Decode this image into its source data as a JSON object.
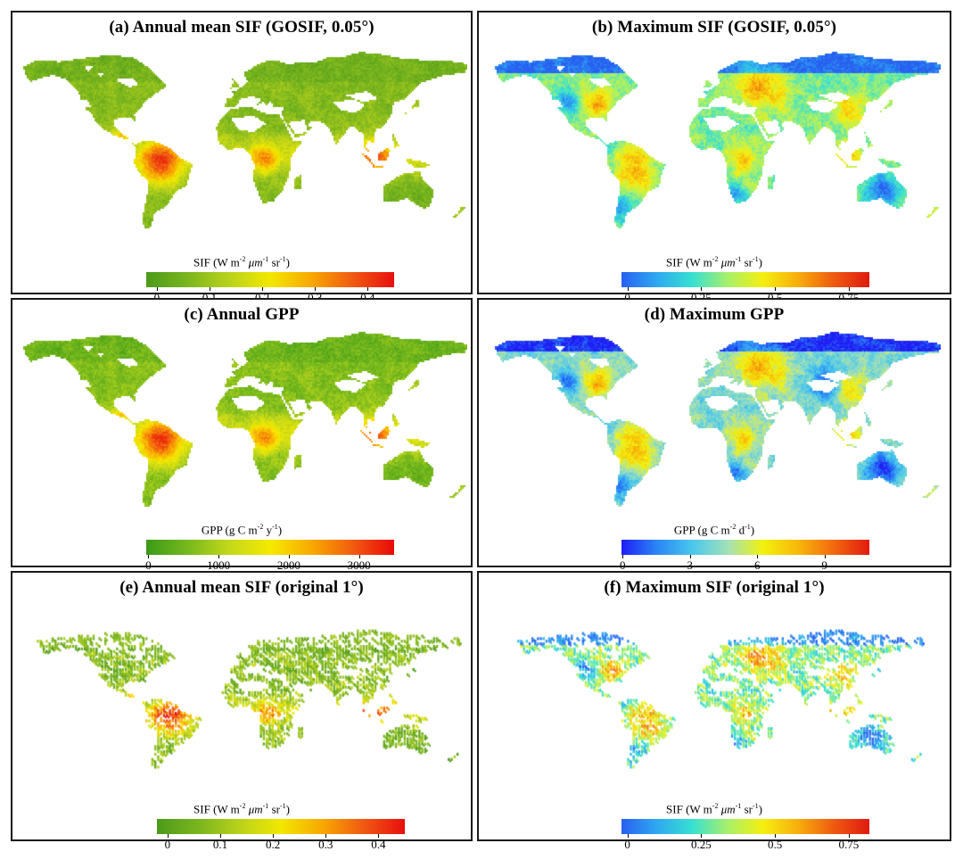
{
  "panels": [
    {
      "id": "a",
      "title": "(a) Annual mean SIF (GOSIF, 0.05°)",
      "scheme": "green",
      "quantity": "SIF",
      "unit": "sif",
      "render": "fine",
      "levels": "a",
      "ticks": [
        {
          "v": 0,
          "label": "0"
        },
        {
          "v": 0.1,
          "label": "0.1"
        },
        {
          "v": 0.2,
          "label": "0.2"
        },
        {
          "v": 0.3,
          "label": "0.3"
        },
        {
          "v": 0.4,
          "label": "0.4"
        }
      ],
      "range": [
        -0.02,
        0.45
      ],
      "colors": [
        "#4c9a1a",
        "#7ab51e",
        "#b9d21b",
        "#f2e800",
        "#f8a800",
        "#f05a12",
        "#e80e0e"
      ]
    },
    {
      "id": "b",
      "title": "(b) Maximum SIF (GOSIF, 0.05°)",
      "scheme": "rainbow",
      "quantity": "SIF",
      "unit": "sif",
      "render": "fine",
      "levels": "b",
      "ticks": [
        {
          "v": 0,
          "label": "0"
        },
        {
          "v": 0.25,
          "label": "0.25"
        },
        {
          "v": 0.5,
          "label": "0.5"
        },
        {
          "v": 0.75,
          "label": "0.75"
        }
      ],
      "range": [
        -0.02,
        0.82
      ],
      "colors": [
        "#2760f0",
        "#2fa9f0",
        "#37e0d2",
        "#a8f06a",
        "#f5ef10",
        "#f7ad0c",
        "#ee5a10",
        "#e01a10"
      ]
    },
    {
      "id": "c",
      "title": "(c) Annual GPP",
      "scheme": "green",
      "quantity": "GPP",
      "unit": "gppy",
      "render": "fine",
      "levels": "c",
      "ticks": [
        {
          "v": 0,
          "label": "0"
        },
        {
          "v": 1000,
          "label": "1000"
        },
        {
          "v": 2000,
          "label": "2000"
        },
        {
          "v": 3000,
          "label": "3000"
        }
      ],
      "range": [
        -30,
        3500
      ],
      "colors": [
        "#3b9a18",
        "#76b81d",
        "#c3d81a",
        "#f6ea00",
        "#f8aa00",
        "#f25c10",
        "#e80808"
      ]
    },
    {
      "id": "d",
      "title": "(d) Maximum GPP",
      "scheme": "rainbow",
      "quantity": "GPP",
      "unit": "gppd",
      "render": "fine",
      "levels": "d",
      "ticks": [
        {
          "v": 0,
          "label": "0"
        },
        {
          "v": 3,
          "label": "3"
        },
        {
          "v": 6,
          "label": "6"
        },
        {
          "v": 9,
          "label": "9"
        }
      ],
      "range": [
        -0.05,
        11
      ],
      "colors": [
        "#1f1ef5",
        "#2a86f5",
        "#49c8ec",
        "#a2e0b8",
        "#f2f20e",
        "#f8b60a",
        "#f2680e",
        "#e21a10"
      ]
    },
    {
      "id": "e",
      "title": "(e) Annual mean SIF (original 1°)",
      "scheme": "green",
      "quantity": "SIF",
      "unit": "sif",
      "render": "coarse",
      "levels": "a",
      "ticks": [
        {
          "v": 0,
          "label": "0"
        },
        {
          "v": 0.1,
          "label": "0.1"
        },
        {
          "v": 0.2,
          "label": "0.2"
        },
        {
          "v": 0.3,
          "label": "0.3"
        },
        {
          "v": 0.4,
          "label": "0.4"
        }
      ],
      "range": [
        -0.02,
        0.45
      ],
      "colors": [
        "#4c9a1a",
        "#7ab51e",
        "#b9d21b",
        "#f2e800",
        "#f8a800",
        "#f05a12",
        "#e80e0e"
      ]
    },
    {
      "id": "f",
      "title": "(f) Maximum SIF (original 1°)",
      "scheme": "rainbow",
      "quantity": "SIF",
      "unit": "sif",
      "render": "coarse",
      "levels": "b",
      "ticks": [
        {
          "v": 0,
          "label": "0"
        },
        {
          "v": 0.25,
          "label": "0.25"
        },
        {
          "v": 0.5,
          "label": "0.5"
        },
        {
          "v": 0.75,
          "label": "0.75"
        }
      ],
      "range": [
        -0.02,
        0.82
      ],
      "colors": [
        "#2760f0",
        "#2fa9f0",
        "#37e0d2",
        "#a8f06a",
        "#f5ef10",
        "#f7ad0c",
        "#ee5a10",
        "#e01a10"
      ]
    }
  ],
  "units": {
    "sif": {
      "pre": "(W m",
      "sup1": "-2",
      "mid1": " μm",
      "sup2": "-1",
      "mid2": " sr",
      "sup3": "-1",
      "post": ")"
    },
    "gppy": {
      "pre": "(g C m",
      "sup1": "-2",
      "mid1": " y",
      "sup2": "-1",
      "mid2": "",
      "sup3": "",
      "post": ")"
    },
    "gppd": {
      "pre": "(g C m",
      "sup1": "-2",
      "mid1": " d",
      "sup2": "-1",
      "mid2": "",
      "sup3": "",
      "post": ")"
    }
  }
}
